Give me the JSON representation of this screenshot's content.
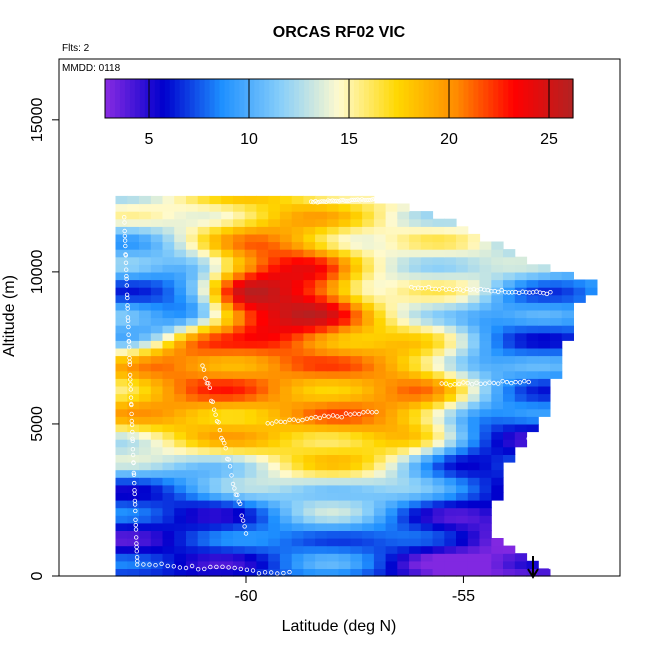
{
  "chart_data": {
    "type": "heatmap",
    "title": "ORCAS RF02 VIC",
    "annotations": [
      "Flts: 2",
      "MMDD: 0118"
    ],
    "xlabel": "Latitude (deg N)",
    "ylabel": "Altitude (m)",
    "xlim": [
      -64.3,
      -51.4
    ],
    "ylim": [
      0,
      17000
    ],
    "x_ticks": [
      -60,
      -55
    ],
    "y_ticks": [
      0,
      5000,
      10000,
      15000
    ],
    "colorbar": {
      "min": 2.8,
      "max": 26.2,
      "ticks": [
        5,
        10,
        15,
        20,
        25
      ],
      "colors": [
        "#8a2be2",
        "#0000cd",
        "#1e90ff",
        "#87cefa",
        "#fffacd",
        "#ffd700",
        "#ff8c00",
        "#ff0000",
        "#b22222"
      ]
    },
    "grid": false,
    "field": {
      "value_range": [
        3,
        26
      ],
      "extent": {
        "lat_range": [
          -63.0,
          -51.9
        ],
        "alt_range": [
          0,
          12500
        ],
        "max_lat_at_altitude": [
          [
            0,
            -53.0
          ],
          [
            1500,
            -54.5
          ],
          [
            3000,
            -54.3
          ],
          [
            4000,
            -54.0
          ],
          [
            5500,
            -53.2
          ],
          [
            9000,
            -52.5
          ],
          [
            9500,
            -51.9
          ],
          [
            10000,
            -53.0
          ],
          [
            11000,
            -54.5
          ],
          [
            12000,
            -56.0
          ],
          [
            12500,
            -57.5
          ]
        ]
      },
      "description_points": [
        {
          "lat": -59.3,
          "alt": 9000,
          "value": 25
        },
        {
          "lat": -61.0,
          "alt": 7000,
          "value": 21
        },
        {
          "lat": -57.0,
          "alt": 6000,
          "value": 20
        },
        {
          "lat": -56.0,
          "alt": 10000,
          "value": 14
        },
        {
          "lat": -62.0,
          "alt": 9000,
          "value": 8
        },
        {
          "lat": -62.0,
          "alt": 1000,
          "value": 6
        },
        {
          "lat": -53.5,
          "alt": 4000,
          "value": 6
        },
        {
          "lat": -53.2,
          "alt": 8000,
          "value": 8
        },
        {
          "lat": -53.5,
          "alt": 400,
          "value": 3
        }
      ]
    },
    "flight_track": "white open circles following the sampled altitudes"
  }
}
